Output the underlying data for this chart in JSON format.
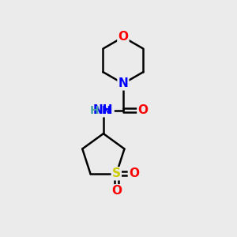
{
  "bg_color": "#ebebeb",
  "atom_colors": {
    "C": "#000000",
    "N": "#0000ff",
    "O": "#ff0000",
    "S": "#cccc00",
    "H": "#4da6a6"
  },
  "bond_color": "#000000",
  "bond_width": 1.8,
  "font_size_atoms": 11
}
